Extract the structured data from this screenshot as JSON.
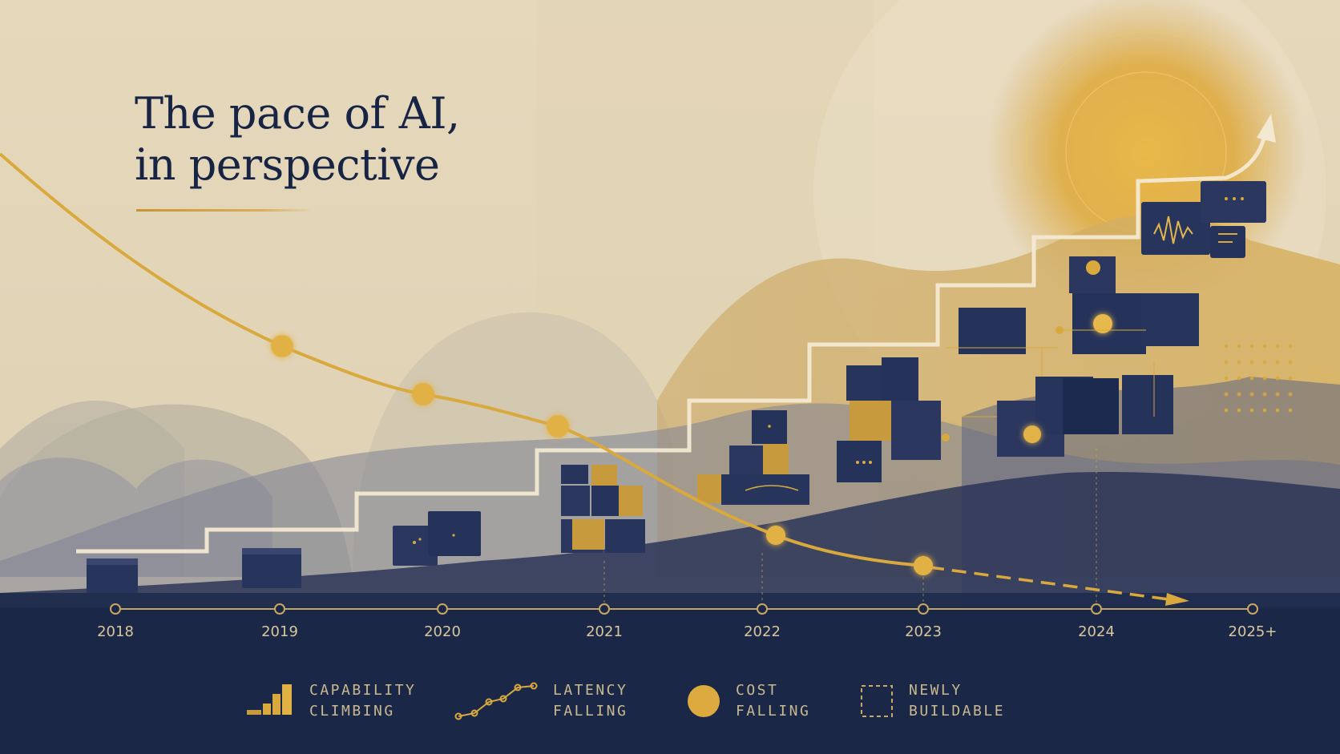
{
  "title": {
    "line1": "The pace of AI,",
    "line2": "in perspective"
  },
  "timeline": {
    "years": [
      "2018",
      "2019",
      "2020",
      "2021",
      "2022",
      "2023",
      "2024",
      "2025+"
    ]
  },
  "legend": [
    {
      "id": "capability",
      "icon": "rising-bars-icon",
      "label": "CAPABILITY\nCLIMBING"
    },
    {
      "id": "latency",
      "icon": "falling-line-icon",
      "label": "LATENCY\nFALLING"
    },
    {
      "id": "cost",
      "icon": "gold-dot-icon",
      "label": "COST\nFALLING"
    },
    {
      "id": "newly-buildable",
      "icon": "dashed-square-icon",
      "label": "NEWLY\nBUILDABLE"
    }
  ],
  "colors": {
    "background": "#e8dcc1",
    "navy": "#1b2747",
    "gold": "#d9a93d",
    "cream": "#f3e9d2",
    "label": "#c8b98f"
  }
}
